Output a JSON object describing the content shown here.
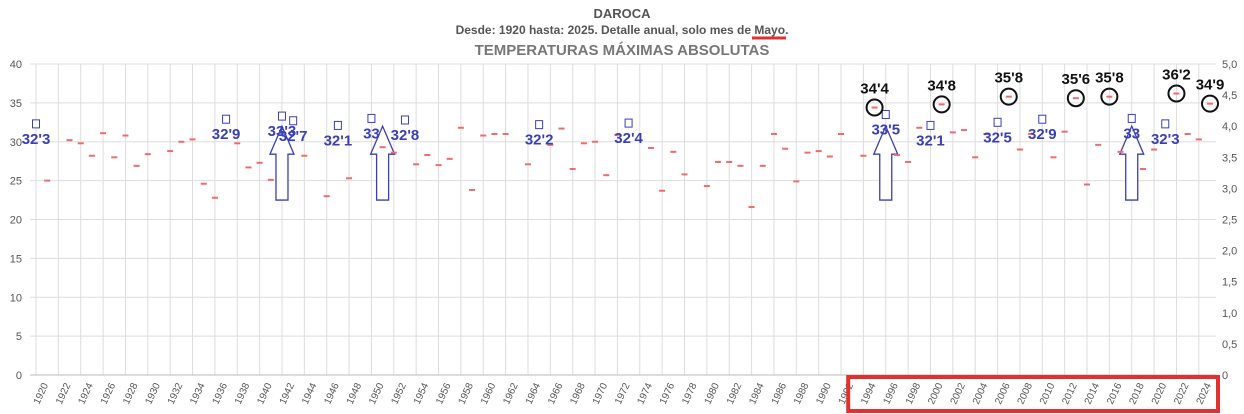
{
  "title": "DAROCA",
  "subtitle_prefix": "Desde: 1920 hasta: 2025. Detalle anual, solo mes de ",
  "subtitle_month": "Mayo",
  "subtitle_end": ".",
  "heading": "TEMPERATURAS MÁXIMAS ABSOLUTAS",
  "colors": {
    "dash": "#ef6b6b",
    "blue_label": "#3a3fb5",
    "arrow": "#3a3fb5",
    "box": "#e03030",
    "grid": "#dddddd",
    "underline": "#e03030"
  },
  "chart_data": {
    "type": "scatter",
    "x_range": [
      1920,
      2025
    ],
    "ylim": [
      0,
      40
    ],
    "y_ticks": [
      0,
      5,
      10,
      15,
      20,
      25,
      30,
      35,
      40
    ],
    "y2lim": [
      0,
      5
    ],
    "y2_ticks": [
      "0",
      "0,5",
      "1,0",
      "1,5",
      "2,0",
      "2,5",
      "3,0",
      "3,5",
      "4,0",
      "4,5",
      "5,0"
    ],
    "x_ticks": [
      1920,
      1922,
      1924,
      1926,
      1928,
      1930,
      1932,
      1934,
      1936,
      1938,
      1940,
      1942,
      1944,
      1946,
      1948,
      1950,
      1952,
      1954,
      1956,
      1958,
      1960,
      1962,
      1964,
      1966,
      1968,
      1970,
      1972,
      1974,
      1976,
      1978,
      1980,
      1982,
      1984,
      1986,
      1988,
      1990,
      1992,
      1994,
      1996,
      1998,
      2000,
      2002,
      2004,
      2006,
      2008,
      2010,
      2012,
      2014,
      2016,
      2018,
      2020,
      2022,
      2024
    ],
    "grid": true,
    "x": [
      1920,
      1921,
      1922,
      1923,
      1924,
      1925,
      1926,
      1927,
      1928,
      1929,
      1930,
      1931,
      1932,
      1933,
      1934,
      1935,
      1936,
      1937,
      1938,
      1939,
      1940,
      1941,
      1942,
      1943,
      1944,
      1945,
      1946,
      1947,
      1948,
      1949,
      1950,
      1951,
      1952,
      1953,
      1954,
      1955,
      1956,
      1957,
      1958,
      1959,
      1960,
      1961,
      1962,
      1963,
      1964,
      1965,
      1966,
      1967,
      1968,
      1969,
      1970,
      1971,
      1972,
      1973,
      1974,
      1975,
      1976,
      1977,
      1978,
      1979,
      1980,
      1981,
      1982,
      1983,
      1984,
      1985,
      1986,
      1987,
      1988,
      1989,
      1990,
      1991,
      1992,
      1993,
      1994,
      1995,
      1996,
      1997,
      1998,
      1999,
      2000,
      2001,
      2002,
      2003,
      2004,
      2005,
      2006,
      2007,
      2008,
      2009,
      2010,
      2011,
      2012,
      2013,
      2014,
      2015,
      2016,
      2017,
      2018,
      2019,
      2020,
      2021,
      2022,
      2023,
      2024,
      2025
    ],
    "y": [
      32.3,
      25.0,
      null,
      30.2,
      29.8,
      28.2,
      31.1,
      28.0,
      30.8,
      26.9,
      28.4,
      null,
      28.8,
      30.0,
      30.3,
      24.6,
      22.8,
      32.9,
      29.8,
      26.7,
      27.3,
      25.1,
      33.3,
      32.7,
      28.2,
      null,
      23.0,
      32.1,
      25.3,
      null,
      33.0,
      29.3,
      28.6,
      32.8,
      27.1,
      28.3,
      27.0,
      27.8,
      31.8,
      23.8,
      30.8,
      31.0,
      31.0,
      null,
      27.1,
      32.2,
      29.6,
      31.7,
      26.5,
      29.8,
      30.0,
      25.7,
      30.9,
      32.4,
      null,
      29.2,
      23.7,
      28.7,
      25.8,
      null,
      24.3,
      27.4,
      27.4,
      26.9,
      21.6,
      26.9,
      31.0,
      29.1,
      24.9,
      28.6,
      28.8,
      28.1,
      31.0,
      null,
      28.2,
      34.4,
      33.5,
      28.3,
      27.4,
      31.8,
      32.1,
      34.8,
      31.2,
      31.5,
      28.0,
      31.0,
      32.5,
      35.8,
      29.0,
      31.0,
      32.9,
      28.0,
      31.3,
      35.6,
      24.5,
      29.6,
      35.8,
      28.7,
      33.0,
      26.5,
      29.0,
      32.3,
      36.2,
      31.0,
      30.3,
      34.9
    ],
    "blue_labels": [
      {
        "year": 1920,
        "value": 32.3,
        "text": "32'3"
      },
      {
        "year": 1937,
        "value": 32.9,
        "text": "32'9"
      },
      {
        "year": 1942,
        "value": 33.3,
        "text": "33'3"
      },
      {
        "year": 1943,
        "value": 32.7,
        "text": "32'7"
      },
      {
        "year": 1947,
        "value": 32.1,
        "text": "32'1"
      },
      {
        "year": 1950,
        "value": 33.0,
        "text": "33"
      },
      {
        "year": 1953,
        "value": 32.8,
        "text": "32'8"
      },
      {
        "year": 1965,
        "value": 32.2,
        "text": "32'2"
      },
      {
        "year": 1973,
        "value": 32.4,
        "text": "32'4"
      },
      {
        "year": 1996,
        "value": 33.5,
        "text": "33'5"
      },
      {
        "year": 2000,
        "value": 32.1,
        "text": "32'1"
      },
      {
        "year": 2006,
        "value": 32.5,
        "text": "32'5"
      },
      {
        "year": 2010,
        "value": 32.9,
        "text": "32'9"
      },
      {
        "year": 2018,
        "value": 33.0,
        "text": "33"
      },
      {
        "year": 2021,
        "value": 32.3,
        "text": "32'3"
      }
    ],
    "black_labels": [
      {
        "year": 1995,
        "value": 34.4,
        "text": "34'4"
      },
      {
        "year": 2001,
        "value": 34.8,
        "text": "34'8"
      },
      {
        "year": 2007,
        "value": 35.8,
        "text": "35'8"
      },
      {
        "year": 2013,
        "value": 35.6,
        "text": "35'6"
      },
      {
        "year": 2016,
        "value": 35.8,
        "text": "35'8"
      },
      {
        "year": 2022,
        "value": 36.2,
        "text": "36'2"
      },
      {
        "year": 2025,
        "value": 34.9,
        "text": "34'9"
      }
    ],
    "arrows": [
      1942,
      1951,
      1996,
      2018
    ],
    "highlight_box": [
      1993,
      2025
    ]
  }
}
